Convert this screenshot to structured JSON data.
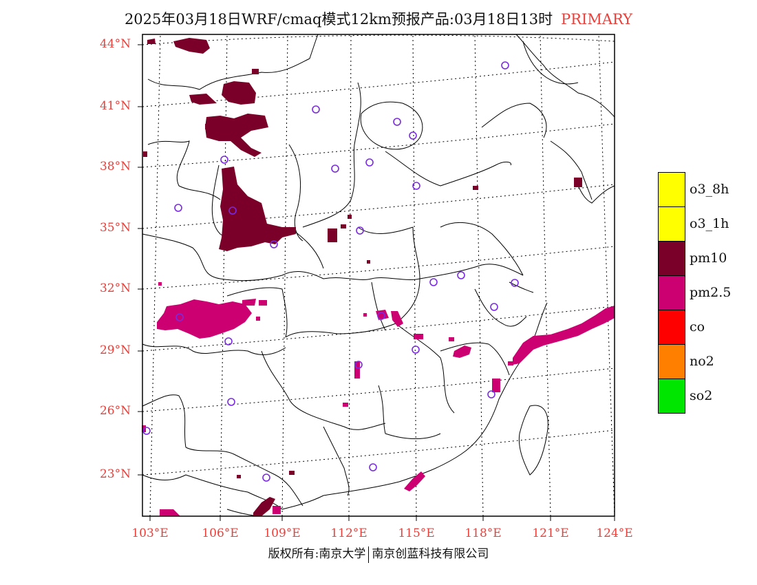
{
  "title": {
    "text": "2025年03月18日WRF/cmaq模式12km预报产品:03月18日13时",
    "tag": "PRIMARY"
  },
  "axes": {
    "lat_labels": [
      "44°N",
      "41°N",
      "38°N",
      "35°N",
      "32°N",
      "29°N",
      "26°N",
      "23°N"
    ],
    "lon_labels": [
      "103°E",
      "106°E",
      "109°E",
      "112°E",
      "115°E",
      "118°E",
      "121°E",
      "124°E"
    ]
  },
  "legend": [
    {
      "label": "o3_8h",
      "color": "#ffff00"
    },
    {
      "label": "o3_1h",
      "color": "#ffff00"
    },
    {
      "label": "pm10",
      "color": "#7a0029"
    },
    {
      "label": "pm2.5",
      "color": "#cc0070"
    },
    {
      "label": "co",
      "color": "#ff0000"
    },
    {
      "label": "no2",
      "color": "#ff7f00"
    },
    {
      "label": "so2",
      "color": "#00e600"
    }
  ],
  "footer": {
    "left": "版权所有:南京大学",
    "right": "南京创蓝科技有限公司"
  },
  "colors": {
    "pm10": "#7a0029",
    "pm25": "#cc0070",
    "station": "#7a2ae0",
    "axis_label": "#e8413c"
  }
}
